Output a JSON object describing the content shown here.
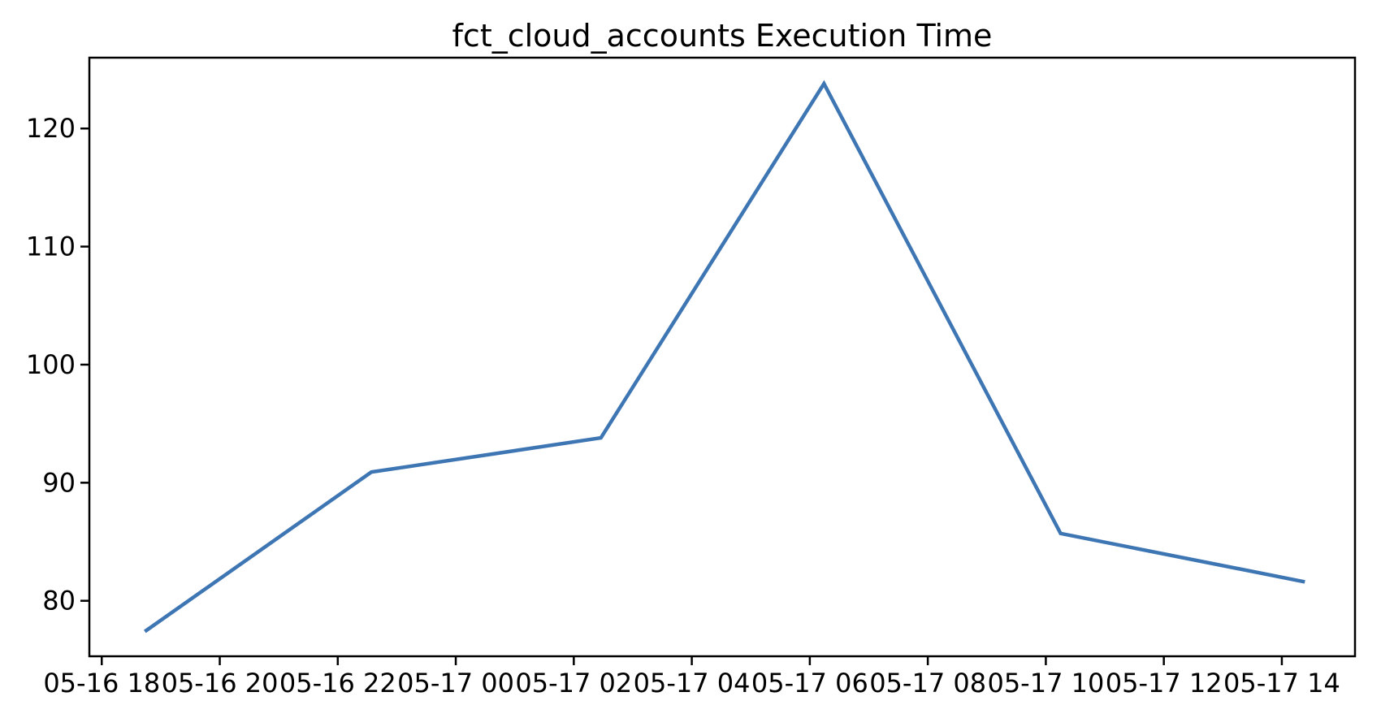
{
  "figure": {
    "background": "#ffffff",
    "text_color": "#000000"
  },
  "chart_data": {
    "type": "line",
    "title": "fct_cloud_accounts Execution Time",
    "xlabel": "",
    "ylabel": "",
    "grid": false,
    "legend": false,
    "axis_color": "#000000",
    "line_color": "#3e76b4",
    "line_width": 4.5,
    "x_tick_labels": [
      "05-16 18",
      "05-16 20",
      "05-16 22",
      "05-17 00",
      "05-17 02",
      "05-17 04",
      "05-17 06",
      "05-17 08",
      "05-17 10",
      "05-17 12",
      "05-17 14"
    ],
    "x_tick_hours": [
      0,
      2,
      4,
      6,
      8,
      10,
      12,
      14,
      16,
      18,
      20
    ],
    "y_ticks": [
      80,
      90,
      100,
      110,
      120
    ],
    "xlim_hours": [
      -0.21,
      21.24
    ],
    "ylim": [
      75.3,
      126.0
    ],
    "series": [
      {
        "name": "fct_cloud_accounts execution time",
        "points": [
          {
            "time": "05-16 18:44",
            "hours": 0.73,
            "value": 77.4
          },
          {
            "time": "05-16 22:34",
            "hours": 4.57,
            "value": 90.9
          },
          {
            "time": "05-17 02:27",
            "hours": 8.46,
            "value": 93.8
          },
          {
            "time": "05-17 06:14",
            "hours": 12.24,
            "value": 123.8
          },
          {
            "time": "05-17 10:15",
            "hours": 16.25,
            "value": 85.7
          },
          {
            "time": "05-17 14:23",
            "hours": 20.39,
            "value": 81.6
          }
        ]
      }
    ]
  }
}
